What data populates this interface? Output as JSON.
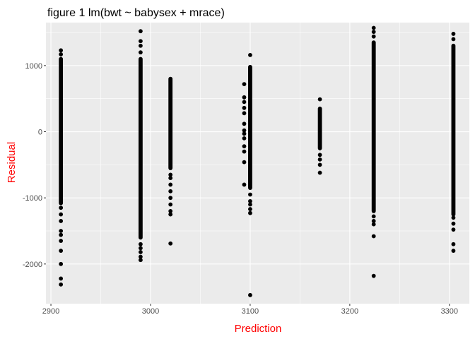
{
  "chart_data": {
    "type": "scatter",
    "title": "figure 1 lm(bwt ~ babysex + mrace)",
    "xlabel": "Prediction",
    "ylabel": "Residual",
    "xlim": [
      2895,
      3320
    ],
    "ylim": [
      -2600,
      1650
    ],
    "x_ticks": [
      2900,
      3000,
      3100,
      3200,
      3300
    ],
    "x_tick_labels": [
      "2900",
      "3000",
      "3100",
      "3200",
      "3300"
    ],
    "y_ticks": [
      -2000,
      -1000,
      0,
      1000
    ],
    "y_tick_labels": [
      "-2000",
      "-1000",
      "0",
      "1000"
    ],
    "grid": true,
    "colors": {
      "panel": "#ebebeb",
      "grid": "#ffffff",
      "point": "#000000",
      "axis_title": "#ff0000",
      "tick_label": "#4d4d4d"
    },
    "groups": [
      {
        "x": 2910,
        "band": [
          -1080,
          1100
        ],
        "extra": [
          1230,
          1170,
          -1150,
          -1250,
          -1350,
          -1500,
          -1560,
          -1650,
          -1800,
          -2000,
          -2220,
          -2310
        ]
      },
      {
        "x": 2990,
        "band": [
          -1600,
          1100
        ],
        "extra": [
          1520,
          1370,
          1300,
          1200,
          -1700,
          -1760,
          -1820,
          -1890,
          -1940
        ]
      },
      {
        "x": 3020,
        "band": [
          -550,
          800
        ],
        "extra": [
          -650,
          -700,
          -800,
          -900,
          -1000,
          -1100,
          -1200,
          -1250,
          -1690
        ]
      },
      {
        "x": 3094,
        "band": [
          null,
          null
        ],
        "extra": [
          720,
          520,
          450,
          360,
          280,
          120,
          20,
          -30,
          -100,
          -220,
          -300,
          -460,
          -800
        ]
      },
      {
        "x": 3100,
        "band": [
          -850,
          980
        ],
        "extra": [
          1160,
          -950,
          -1050,
          -1100,
          -1170,
          -1230,
          -2470
        ]
      },
      {
        "x": 3170,
        "band": [
          -250,
          350
        ],
        "extra": [
          490,
          -350,
          -420,
          -500,
          -620
        ]
      },
      {
        "x": 3224,
        "band": [
          -1200,
          1350
        ],
        "extra": [
          1570,
          1510,
          1440,
          -1280,
          -1350,
          -1400,
          -1580,
          -2180
        ]
      },
      {
        "x": 3304,
        "band": [
          -1250,
          1300
        ],
        "extra": [
          1480,
          1400,
          -1300,
          -1390,
          -1480,
          -1700,
          -1800
        ]
      }
    ]
  }
}
